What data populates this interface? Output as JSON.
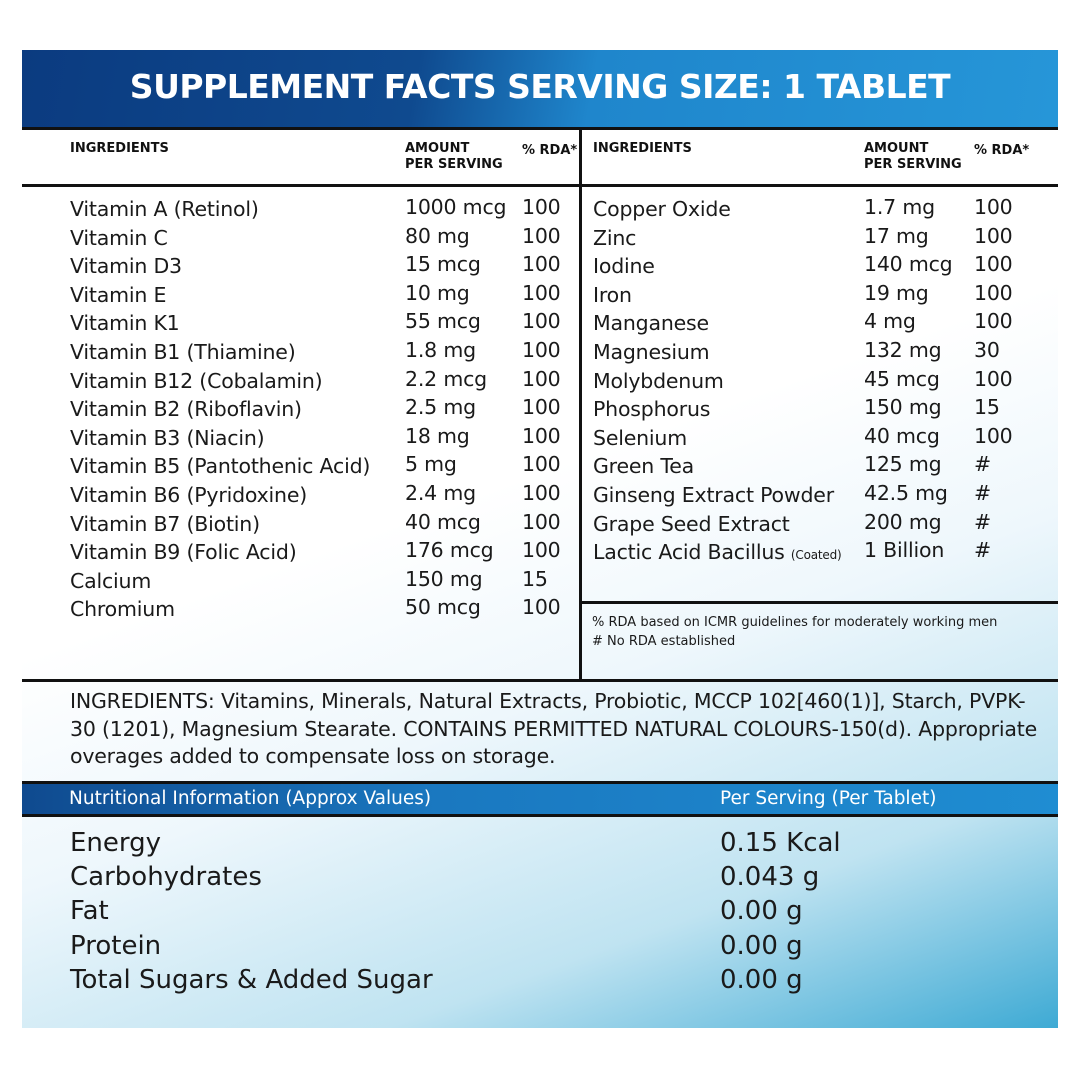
{
  "title": "SUPPLEMENT FACTS SERVING SIZE: 1 TABLET",
  "columns": {
    "ingredients": "INGREDIENTS",
    "amount_1": "AMOUNT",
    "amount_2": "PER SERVING",
    "rda": "% RDA*"
  },
  "left_rows": [
    {
      "name": "Vitamin A (Retinol)",
      "amount": "1000 mcg",
      "rda": "100"
    },
    {
      "name": "Vitamin C",
      "amount": "80 mg",
      "rda": "100"
    },
    {
      "name": "Vitamin D3",
      "amount": "15 mcg",
      "rda": "100"
    },
    {
      "name": "Vitamin E",
      "amount": "10 mg",
      "rda": "100"
    },
    {
      "name": "Vitamin K1",
      "amount": "55 mcg",
      "rda": "100"
    },
    {
      "name": "Vitamin B1 (Thiamine)",
      "amount": "1.8 mg",
      "rda": "100"
    },
    {
      "name": "Vitamin B12 (Cobalamin)",
      "amount": "2.2 mcg",
      "rda": "100"
    },
    {
      "name": "Vitamin B2 (Riboflavin)",
      "amount": "2.5 mg",
      "rda": "100"
    },
    {
      "name": "Vitamin B3 (Niacin)",
      "amount": "18 mg",
      "rda": "100"
    },
    {
      "name": "Vitamin B5 (Pantothenic Acid)",
      "amount": "5 mg",
      "rda": "100"
    },
    {
      "name": "Vitamin B6 (Pyridoxine)",
      "amount": "2.4 mg",
      "rda": "100"
    },
    {
      "name": "Vitamin B7 (Biotin)",
      "amount": "40 mcg",
      "rda": "100"
    },
    {
      "name": "Vitamin B9 (Folic Acid)",
      "amount": "176 mcg",
      "rda": "100"
    },
    {
      "name": "Calcium",
      "amount": "150 mg",
      "rda": "15"
    },
    {
      "name": "Chromium",
      "amount": "50 mcg",
      "rda": "100"
    }
  ],
  "right_rows": [
    {
      "name": "Copper Oxide",
      "amount": "1.7 mg",
      "rda": "100"
    },
    {
      "name": "Zinc",
      "amount": "17 mg",
      "rda": "100"
    },
    {
      "name": "Iodine",
      "amount": "140 mcg",
      "rda": "100"
    },
    {
      "name": "Iron",
      "amount": "19 mg",
      "rda": "100"
    },
    {
      "name": "Manganese",
      "amount": "4 mg",
      "rda": "100"
    },
    {
      "name": "Magnesium",
      "amount": "132 mg",
      "rda": "30"
    },
    {
      "name": "Molybdenum",
      "amount": "45 mcg",
      "rda": "100"
    },
    {
      "name": "Phosphorus",
      "amount": "150 mg",
      "rda": "15"
    },
    {
      "name": "Selenium",
      "amount": "40 mcg",
      "rda": "100"
    },
    {
      "name": "Green Tea",
      "amount": "125 mg",
      "rda": "#"
    },
    {
      "name": "Ginseng Extract Powder",
      "amount": "42.5 mg",
      "rda": "#"
    },
    {
      "name": "Grape Seed Extract",
      "amount": "200 mg",
      "rda": "#"
    },
    {
      "name": "Lactic Acid Bacillus",
      "note": "(Coated)",
      "amount": "1 Billion",
      "rda": "#"
    }
  ],
  "footnotes": [
    "% RDA based on ICMR guidelines for moderately working men",
    "# No RDA established"
  ],
  "ingredients_text": "INGREDIENTS: Vitamins, Minerals, Natural Extracts, Probiotic, MCCP 102[460(1)], Starch, PVPK-30 (1201), Magnesium Stearate. CONTAINS PERMITTED NATURAL COLOURS-150(d). Appropriate overages added to compensate loss on storage.",
  "nutrition": {
    "header_left": "Nutritional Information (Approx Values)",
    "header_right": "Per Serving (Per Tablet)",
    "rows": [
      {
        "name": "Energy",
        "value": "0.15 Kcal"
      },
      {
        "name": "Carbohydrates",
        "value": "0.043 g"
      },
      {
        "name": "Fat",
        "value": "0.00 g"
      },
      {
        "name": "Protein",
        "value": "0.00 g"
      },
      {
        "name": "Total Sugars & Added Sugar",
        "value": "0.00 g"
      }
    ]
  },
  "colors": {
    "header_dark": "#0b3b80",
    "header_light": "#2696d8",
    "bar": "#1e8cd0"
  }
}
